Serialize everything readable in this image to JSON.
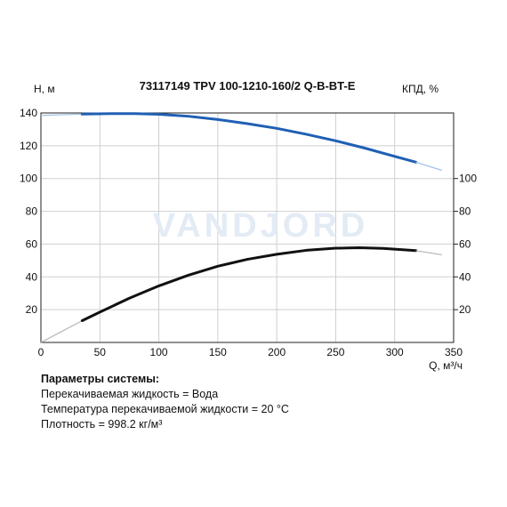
{
  "chart_data": {
    "type": "line",
    "title": "73117149 TPV 100-1210-160/2 Q-B-BT-E",
    "xlabel": "Q, м³/ч",
    "ylabel_left": "H, м",
    "ylabel_right": "КПД, %",
    "xlim": [
      0,
      350
    ],
    "ylim_left": [
      0,
      140
    ],
    "ylim_right": [
      0,
      140
    ],
    "x_ticks": [
      0,
      50,
      100,
      150,
      200,
      250,
      300,
      350
    ],
    "y_ticks_left": [
      20,
      40,
      60,
      80,
      100,
      120,
      140
    ],
    "y_ticks_right": [
      20,
      40,
      60,
      80,
      100
    ],
    "grid": true,
    "watermark": "VANDJORD",
    "colors": {
      "head": "#1f5fb4",
      "head_ext": "#9fc0e6",
      "efficiency": "#111111",
      "efficiency_ext": "#b4b4b4",
      "grid": "#cfcfcf"
    },
    "series": [
      {
        "key": "head",
        "axis": "left",
        "values_x": [
          0,
          35,
          60,
          80,
          100,
          125,
          150,
          175,
          200,
          225,
          250,
          275,
          300,
          318
        ],
        "values_y": [
          138.5,
          139.3,
          139.6,
          139.6,
          139.2,
          138.0,
          136.0,
          133.5,
          130.6,
          127.0,
          123.0,
          118.5,
          113.5,
          110.0
        ],
        "ext_before_x": [
          0,
          35
        ],
        "ext_after_x": [
          318,
          340
        ],
        "ext_after_y": [
          110.0,
          105.0
        ]
      },
      {
        "key": "efficiency",
        "axis": "right",
        "values_x": [
          0,
          35,
          50,
          75,
          100,
          125,
          150,
          175,
          200,
          225,
          250,
          270,
          290,
          318
        ],
        "values_y": [
          0,
          13.3,
          18.5,
          27.0,
          34.5,
          41.0,
          46.5,
          50.7,
          53.8,
          56.2,
          57.5,
          57.8,
          57.4,
          56.0
        ],
        "ext_before_x": [
          0,
          35
        ],
        "ext_after_x": [
          318,
          340
        ],
        "ext_after_y": [
          56.0,
          53.5
        ]
      }
    ]
  },
  "params": {
    "title": "Параметры системы:",
    "lines": [
      "Перекачиваемая жидкость = Вода",
      "Температура перекачиваемой жидкости = 20 °C",
      "Плотность = 998.2 кг/м³"
    ]
  }
}
